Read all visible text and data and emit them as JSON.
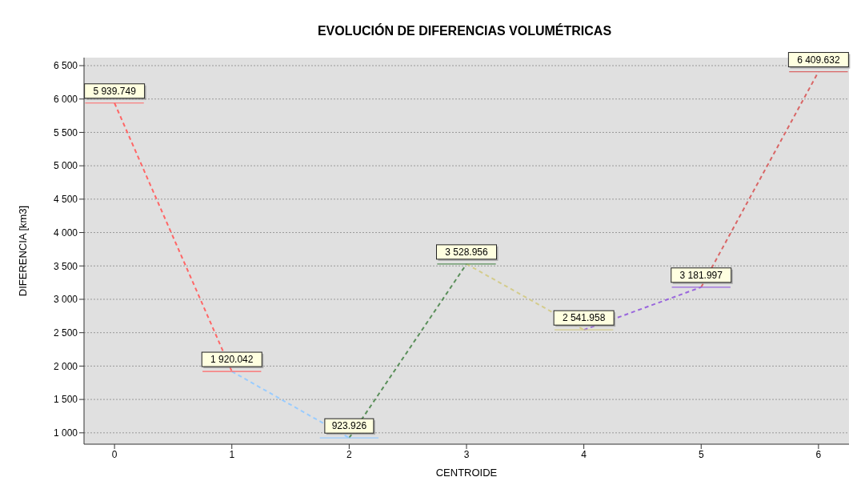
{
  "chart_data": {
    "type": "line",
    "title": "EVOLUCIÓN DE DIFERENCIAS VOLUMÉTRICAS",
    "xlabel": "CENTROIDE",
    "ylabel": "DIFERENCIA [km3]",
    "xlim": [
      -0.26,
      6.26
    ],
    "xticks": [
      0,
      1,
      2,
      3,
      4,
      5,
      6
    ],
    "ylim": [
      830,
      6620
    ],
    "yticks": [
      {
        "value": 1000,
        "label": "1 000"
      },
      {
        "value": 1500,
        "label": "1 500"
      },
      {
        "value": 2000,
        "label": "2 000"
      },
      {
        "value": 2500,
        "label": "2 500"
      },
      {
        "value": 3000,
        "label": "3 000"
      },
      {
        "value": 3500,
        "label": "3 500"
      },
      {
        "value": 4000,
        "label": "4 000"
      },
      {
        "value": 4500,
        "label": "4 500"
      },
      {
        "value": 5000,
        "label": "5 000"
      },
      {
        "value": 5500,
        "label": "5 500"
      },
      {
        "value": 6000,
        "label": "6 000"
      },
      {
        "value": 6500,
        "label": "6 500"
      }
    ],
    "grid": "y",
    "line_style": "dashed",
    "series": [
      {
        "color": "#ff6666",
        "x": [
          0,
          1
        ],
        "values": [
          5939.749,
          1920.042
        ],
        "xerrors": [
          0.25,
          0.25
        ],
        "value_labels": [
          "5 939.749",
          "1 920.042"
        ]
      },
      {
        "color": "#99ccff",
        "x": [
          1,
          2
        ],
        "values": [
          1920.042,
          923.926
        ],
        "xerrors": [
          null,
          0.25
        ],
        "value_labels": [
          null,
          "923.926"
        ]
      },
      {
        "color": "#5a8f5a",
        "x": [
          2,
          3
        ],
        "values": [
          923.926,
          3528.956
        ],
        "xerrors": [
          null,
          0.25
        ],
        "value_labels": [
          null,
          "3 528.956"
        ]
      },
      {
        "color": "#d4cc8c",
        "x": [
          3,
          4
        ],
        "values": [
          3528.956,
          2541.958
        ],
        "xerrors": [
          null,
          0.25
        ],
        "value_labels": [
          null,
          "2 541.958"
        ]
      },
      {
        "color": "#9966dd",
        "x": [
          4,
          5
        ],
        "values": [
          2541.958,
          3181.997
        ],
        "xerrors": [
          null,
          0.25
        ],
        "value_labels": [
          null,
          "3 181.997"
        ]
      },
      {
        "color": "#d96666",
        "x": [
          5,
          6
        ],
        "values": [
          3181.997,
          6409.632
        ],
        "xerrors": [
          null,
          0.25
        ],
        "value_labels": [
          null,
          "6 409.632"
        ]
      }
    ]
  }
}
